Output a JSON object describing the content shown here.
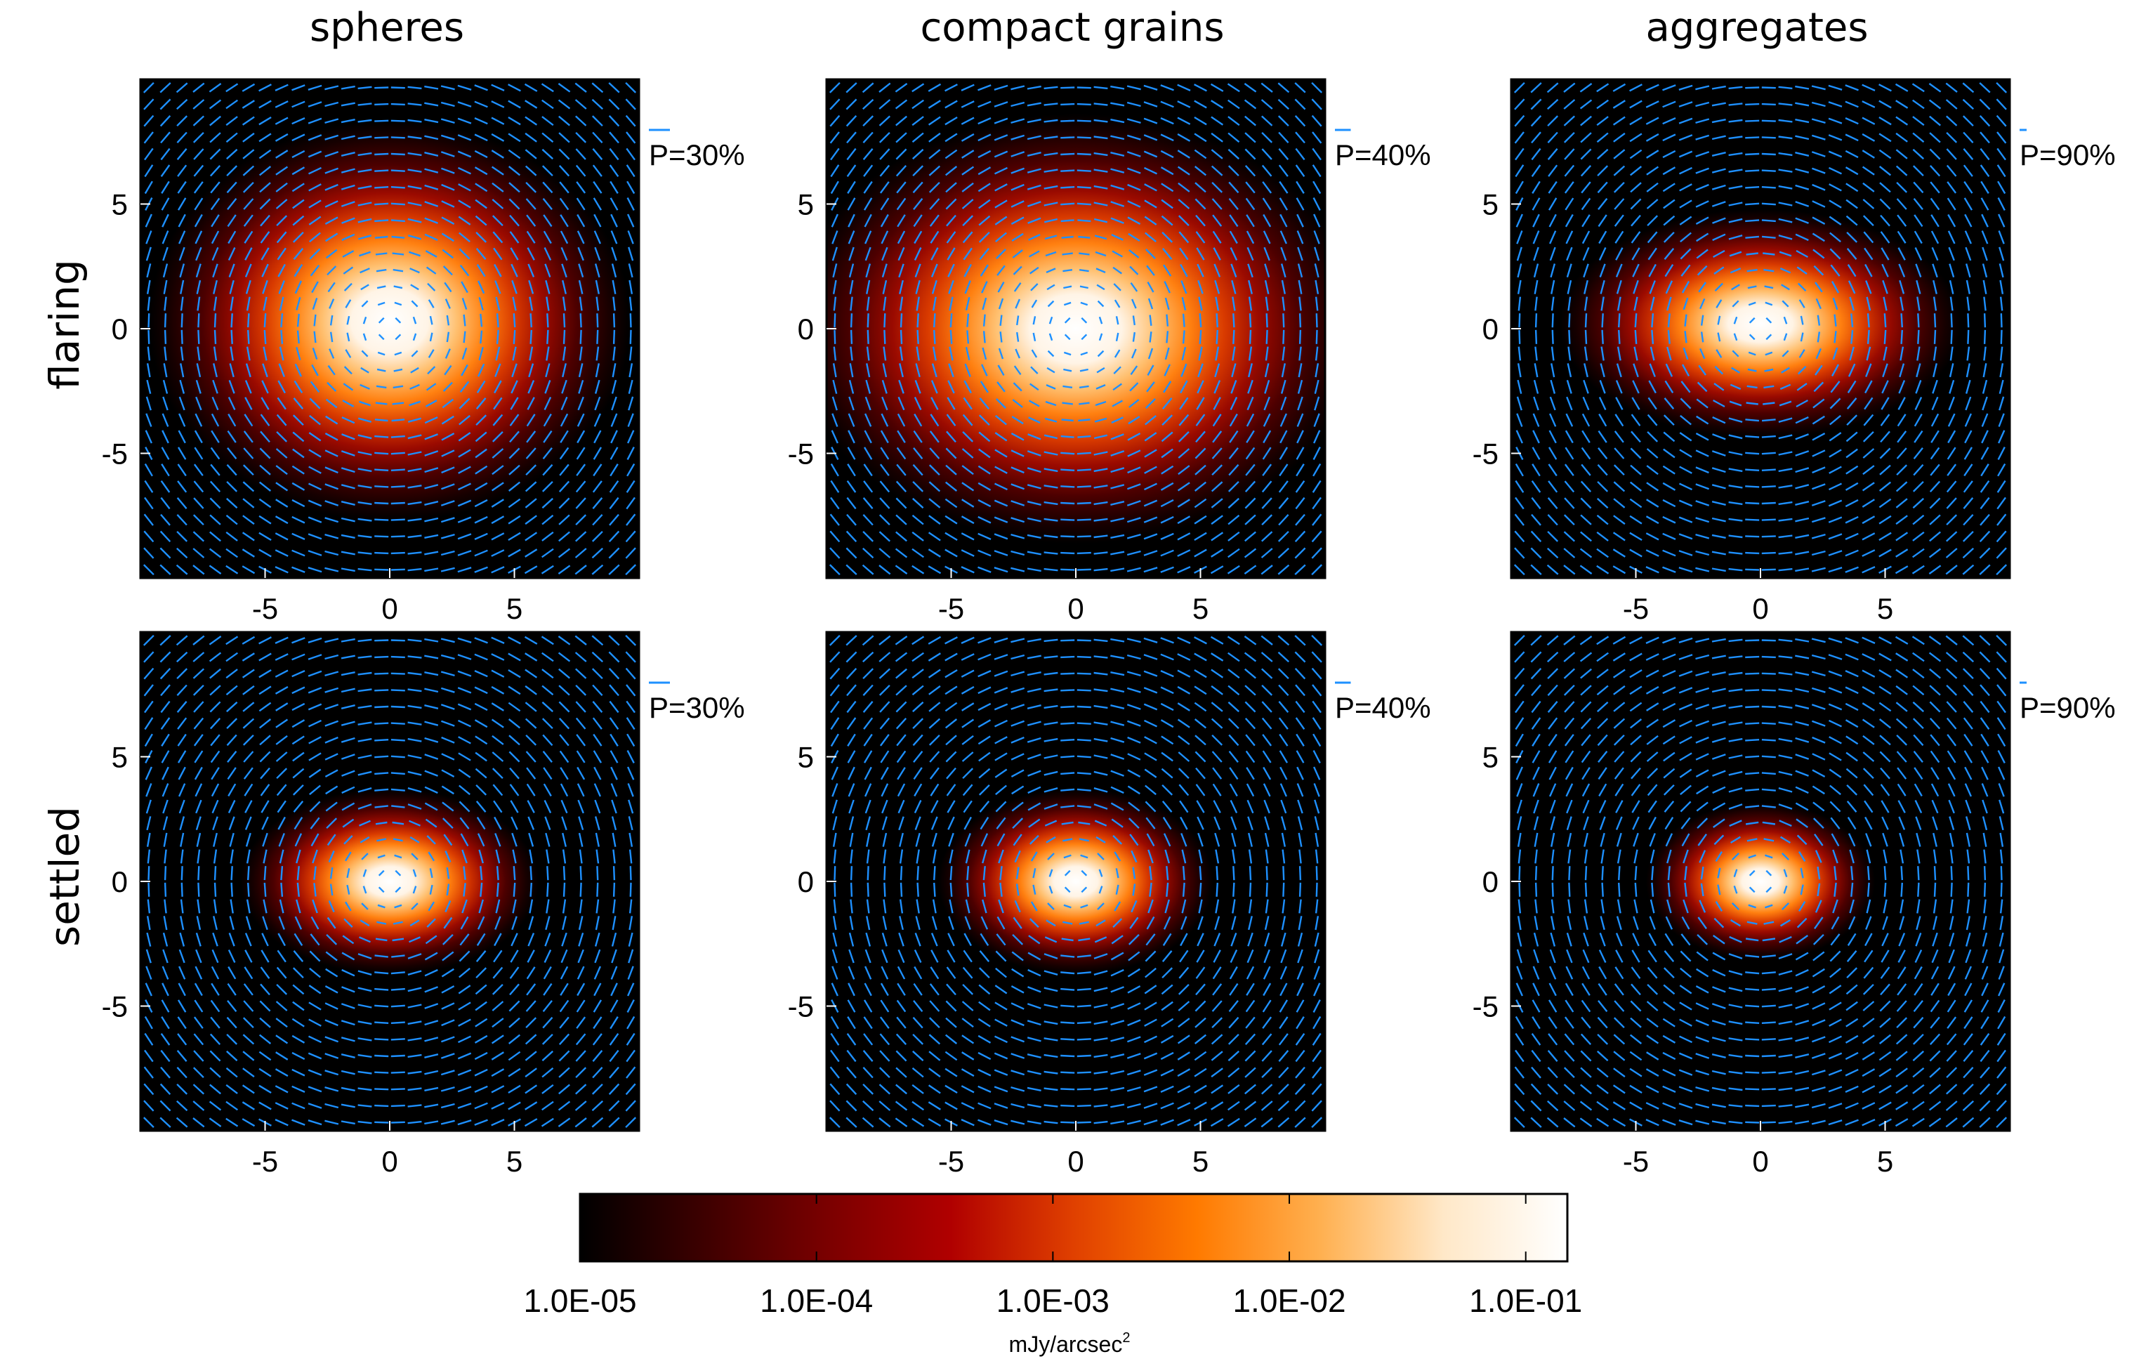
{
  "colors": {
    "vector": "#1e90ff",
    "frame": "#000000",
    "colormap": [
      "#000000",
      "#3d0000",
      "#7a0000",
      "#b00000",
      "#e04000",
      "#ff7a00",
      "#ffb050",
      "#ffe8c8",
      "#ffffff"
    ]
  },
  "chart_data": {
    "type": "heatmap",
    "description_units": "arcsec",
    "column_titles": [
      "spheres",
      "compact grains",
      "aggregates"
    ],
    "row_titles": [
      "flaring",
      "settled"
    ],
    "x_ticks": [
      "-5",
      "0",
      "5"
    ],
    "y_ticks": [
      "5",
      "0",
      "-5"
    ],
    "x_tick_values": [
      -5,
      0,
      5
    ],
    "y_tick_values": [
      5,
      0,
      -5
    ],
    "xlim": [
      -10,
      10
    ],
    "ylim": [
      -10,
      10
    ],
    "colorbar": {
      "ticks": [
        "1.0E-05",
        "1.0E-04",
        "1.0E-03",
        "1.0E-02",
        "1.0E-01"
      ],
      "tick_values": [
        1e-05,
        0.0001,
        0.001,
        0.01,
        0.1
      ],
      "unit_main": "mJy/arcsec",
      "unit_sup": "2",
      "scale": "log",
      "range": [
        1e-05,
        0.15
      ]
    },
    "panels": [
      {
        "row": "flaring",
        "column": "spheres",
        "polarization_label": "P=30%",
        "scale_bar_percent": 30,
        "peak_log": -1.0,
        "center_y": 0.3,
        "width_x": 4.2,
        "width_y": 2.8,
        "inner_radius": 2.2
      },
      {
        "row": "flaring",
        "column": "compact grains",
        "polarization_label": "P=40%",
        "scale_bar_percent": 40,
        "peak_log": -1.0,
        "center_y": 0.0,
        "width_x": 5.0,
        "width_y": 3.0,
        "inner_radius": 2.6
      },
      {
        "row": "flaring",
        "column": "aggregates",
        "polarization_label": "P=90%",
        "scale_bar_percent": 90,
        "peak_log": -1.0,
        "center_y": 0.2,
        "width_x": 3.5,
        "width_y": 1.6,
        "inner_radius": 2.0
      },
      {
        "row": "settled",
        "column": "spheres",
        "polarization_label": "P=30%",
        "scale_bar_percent": 30,
        "peak_log": -1.0,
        "center_y": 0.0,
        "width_x": 2.6,
        "width_y": 1.3,
        "inner_radius": 1.6
      },
      {
        "row": "settled",
        "column": "compact grains",
        "polarization_label": "P=40%",
        "scale_bar_percent": 40,
        "peak_log": -1.0,
        "center_y": 0.0,
        "width_x": 2.4,
        "width_y": 1.3,
        "inner_radius": 1.5
      },
      {
        "row": "settled",
        "column": "aggregates",
        "polarization_label": "P=90%",
        "scale_bar_percent": 90,
        "peak_log": -1.0,
        "center_y": 0.0,
        "width_x": 2.0,
        "width_y": 1.1,
        "inner_radius": 1.3
      }
    ]
  }
}
